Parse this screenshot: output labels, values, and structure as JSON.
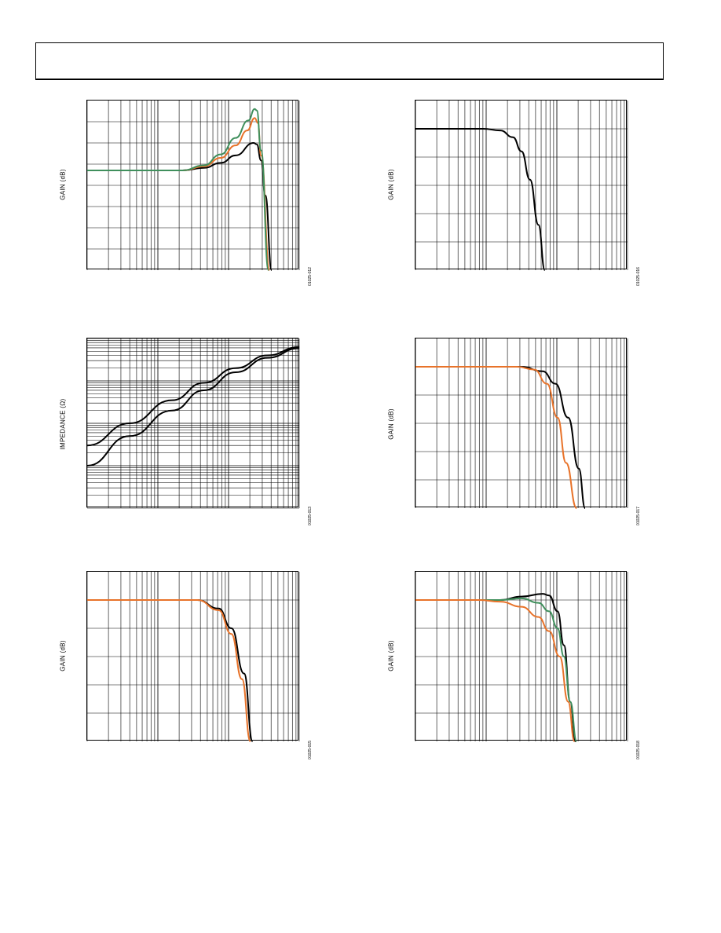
{
  "chart_data": [
    {
      "type": "line",
      "ylabel": "GAIN (dB)",
      "figure_code": "01025-012",
      "xscale": "log",
      "grid": true,
      "series": [
        {
          "color": "#000000",
          "values": [
            [
              0,
              0
            ],
            [
              0.45,
              0
            ],
            [
              0.55,
              0.5
            ],
            [
              0.63,
              1.5
            ],
            [
              0.7,
              3.0
            ],
            [
              0.785,
              5.5
            ],
            [
              0.8,
              5.2
            ],
            [
              0.82,
              2
            ],
            [
              0.84,
              -5
            ],
            [
              0.87,
              -20
            ]
          ]
        },
        {
          "color": "#e8732a",
          "values": [
            [
              0,
              0
            ],
            [
              0.45,
              0
            ],
            [
              0.55,
              0.8
            ],
            [
              0.63,
              2.5
            ],
            [
              0.7,
              5.0
            ],
            [
              0.755,
              8.0
            ],
            [
              0.79,
              10.5
            ],
            [
              0.805,
              9.5
            ],
            [
              0.82,
              3
            ],
            [
              0.86,
              -20
            ]
          ]
        },
        {
          "color": "#3f8f5c",
          "values": [
            [
              0,
              0
            ],
            [
              0.45,
              0
            ],
            [
              0.55,
              1.0
            ],
            [
              0.63,
              3.2
            ],
            [
              0.7,
              6.5
            ],
            [
              0.76,
              10.0
            ],
            [
              0.79,
              12.3
            ],
            [
              0.8,
              12.0
            ],
            [
              0.82,
              4
            ],
            [
              0.855,
              -20
            ]
          ]
        }
      ]
    },
    {
      "type": "line",
      "ylabel": "GAIN (dB)",
      "figure_code": "01025-016",
      "xscale": "log",
      "grid": true,
      "series": [
        {
          "color": "#000000",
          "values": [
            [
              0,
              0
            ],
            [
              0.32,
              0
            ],
            [
              0.4,
              -0.3
            ],
            [
              0.46,
              -1.5
            ],
            [
              0.5,
              -4
            ],
            [
              0.54,
              -9
            ],
            [
              0.58,
              -17
            ],
            [
              0.61,
              -25
            ]
          ]
        }
      ]
    },
    {
      "type": "line",
      "ylabel": "IMPEDANCE (Ω)",
      "figure_code": "01025-013",
      "xscale": "log",
      "yscale": "log",
      "grid": true,
      "series": [
        {
          "color": "#000000",
          "values": [
            [
              0,
              0.01
            ],
            [
              0.2,
              0.05
            ],
            [
              0.4,
              0.2
            ],
            [
              0.55,
              0.6
            ],
            [
              0.7,
              1.6
            ],
            [
              0.85,
              3.5
            ],
            [
              1.0,
              5.9
            ]
          ]
        },
        {
          "color": "#000000",
          "values": [
            [
              0,
              0.03
            ],
            [
              0.2,
              0.1
            ],
            [
              0.4,
              0.35
            ],
            [
              0.55,
              0.9
            ],
            [
              0.7,
              2.0
            ],
            [
              0.85,
              4.0
            ],
            [
              1.0,
              6.3
            ]
          ]
        }
      ]
    },
    {
      "type": "line",
      "ylabel": "GAIN (dB)",
      "figure_code": "01025-017",
      "xscale": "log",
      "grid": true,
      "series": [
        {
          "color": "#000000",
          "values": [
            [
              0,
              0
            ],
            [
              0.5,
              0
            ],
            [
              0.6,
              -0.8
            ],
            [
              0.66,
              -3
            ],
            [
              0.72,
              -9
            ],
            [
              0.77,
              -18
            ],
            [
              0.8,
              -25
            ]
          ]
        },
        {
          "color": "#e8732a",
          "values": [
            [
              0,
              0
            ],
            [
              0.48,
              0
            ],
            [
              0.56,
              -0.5
            ],
            [
              0.62,
              -3
            ],
            [
              0.67,
              -9
            ],
            [
              0.71,
              -17
            ],
            [
              0.76,
              -25
            ]
          ]
        }
      ]
    },
    {
      "type": "line",
      "ylabel": "GAIN (dB)",
      "figure_code": "01025-015",
      "xscale": "log",
      "grid": true,
      "series": [
        {
          "color": "#000000",
          "values": [
            [
              0,
              0
            ],
            [
              0.52,
              0
            ],
            [
              0.62,
              -1.5
            ],
            [
              0.68,
              -5
            ],
            [
              0.74,
              -13
            ],
            [
              0.78,
              -25
            ]
          ]
        },
        {
          "color": "#e8732a",
          "values": [
            [
              0,
              0
            ],
            [
              0.52,
              0
            ],
            [
              0.62,
              -1.8
            ],
            [
              0.68,
              -6
            ],
            [
              0.73,
              -14
            ],
            [
              0.77,
              -25
            ]
          ]
        }
      ]
    },
    {
      "type": "line",
      "ylabel": "GAIN (dB)",
      "figure_code": "01025-018",
      "xscale": "log",
      "grid": true,
      "series": [
        {
          "color": "#000000",
          "values": [
            [
              0,
              0
            ],
            [
              0.4,
              0
            ],
            [
              0.5,
              0.6
            ],
            [
              0.6,
              1.1
            ],
            [
              0.63,
              0.8
            ],
            [
              0.67,
              -2
            ],
            [
              0.7,
              -8
            ],
            [
              0.73,
              -18
            ],
            [
              0.755,
              -25
            ]
          ]
        },
        {
          "color": "#3f8f5c",
          "values": [
            [
              0,
              0
            ],
            [
              0.4,
              0
            ],
            [
              0.5,
              0.3
            ],
            [
              0.58,
              -0.5
            ],
            [
              0.63,
              -2
            ],
            [
              0.67,
              -5
            ],
            [
              0.7,
              -10
            ],
            [
              0.73,
              -18
            ],
            [
              0.76,
              -25
            ]
          ]
        },
        {
          "color": "#e8732a",
          "values": [
            [
              0,
              0
            ],
            [
              0.3,
              0
            ],
            [
              0.4,
              -0.3
            ],
            [
              0.5,
              -1.2
            ],
            [
              0.58,
              -3
            ],
            [
              0.63,
              -5.5
            ],
            [
              0.68,
              -10
            ],
            [
              0.72,
              -18
            ],
            [
              0.75,
              -25
            ]
          ]
        }
      ]
    }
  ]
}
